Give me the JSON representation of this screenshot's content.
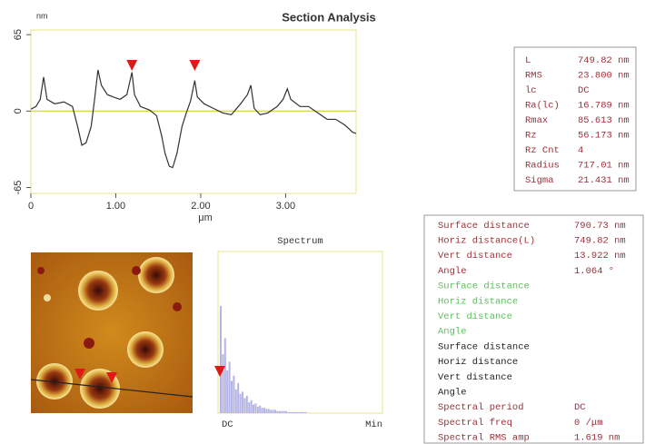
{
  "title": "Section Analysis",
  "chart_data": [
    {
      "type": "line",
      "y_label": "nm",
      "x_label": "μm",
      "x": [
        0,
        0.06,
        0.11,
        0.15,
        0.19,
        0.28,
        0.39,
        0.49,
        0.55,
        0.6,
        0.65,
        0.71,
        0.75,
        0.79,
        0.83,
        0.9,
        0.97,
        1.05,
        1.13,
        1.19,
        1.22,
        1.29,
        1.4,
        1.48,
        1.54,
        1.58,
        1.63,
        1.67,
        1.72,
        1.78,
        1.83,
        1.88,
        1.93,
        1.96,
        2.04,
        2.15,
        2.26,
        2.36,
        2.47,
        2.55,
        2.59,
        2.63,
        2.7,
        2.79,
        2.9,
        2.97,
        3.02,
        3.06,
        3.17,
        3.27,
        3.38,
        3.49,
        3.59,
        3.7,
        3.79,
        3.83
      ],
      "series": [
        {
          "color": "#333333",
          "values": [
            1.6,
            3.9,
            10,
            29,
            10,
            6.2,
            7.8,
            3.9,
            -13,
            -29,
            -27,
            -13,
            10,
            35,
            22,
            14,
            12,
            10,
            14,
            33,
            14,
            3.9,
            0.8,
            -3.9,
            -21,
            -36,
            -47,
            -48,
            -36,
            -13,
            -1.6,
            8.5,
            26,
            12,
            6.2,
            2.3,
            -1.6,
            -3.1,
            6.2,
            14,
            22,
            2.3,
            -3.1,
            -1.6,
            3.9,
            10,
            19,
            10,
            3.9,
            3.9,
            -1.6,
            -7,
            -7,
            -12,
            -18,
            -19
          ]
        }
      ],
      "xlim": [
        0,
        3.83
      ],
      "ylim": [
        -70,
        69
      ],
      "xticks": [
        0,
        {
          "value": 1,
          "label": "1.00"
        },
        {
          "value": 2,
          "label": "2.00"
        },
        {
          "value": 3,
          "label": "3.00"
        }
      ],
      "yticks": [
        65,
        0,
        -65
      ],
      "cursors_x": [
        1.19,
        1.93
      ],
      "cursor_color": "#e01818"
    },
    {
      "type": "bar",
      "title": "Spectrum",
      "x_labels": [
        "DC",
        "Min"
      ],
      "color": "#b4b4e6",
      "values": [
        100,
        55,
        70,
        40,
        48,
        30,
        35,
        22,
        28,
        18,
        20,
        14,
        16,
        10,
        12,
        8,
        9,
        6,
        7,
        5,
        5,
        4,
        4,
        3,
        3,
        3,
        2,
        2,
        2,
        2,
        2,
        1,
        1,
        1,
        1,
        1,
        1,
        1,
        1,
        1
      ],
      "ylim": [
        0,
        100
      ]
    }
  ],
  "stats": {
    "rows": [
      [
        "L",
        "749.82 nm"
      ],
      [
        "RMS",
        "23.800 nm"
      ],
      [
        "lc",
        "DC"
      ],
      [
        "Ra(lc)",
        "16.789 nm"
      ],
      [
        "Rmax",
        "85.613 nm"
      ],
      [
        "Rz",
        "56.173 nm"
      ],
      [
        "Rz Cnt",
        "4"
      ],
      [
        "Radius",
        "717.01 nm"
      ],
      [
        "Sigma",
        "21.431 nm"
      ]
    ]
  },
  "measurements": {
    "rows": [
      [
        "Surface distance",
        "790.73 nm"
      ],
      [
        "Horiz distance(L)",
        "749.82 nm"
      ],
      [
        "Vert distance",
        "13.922 nm"
      ],
      [
        "Angle",
        "1.064 °"
      ],
      [
        "Surface distance",
        ""
      ],
      [
        "Horiz distance",
        ""
      ],
      [
        "Vert distance",
        ""
      ],
      [
        "Angle",
        ""
      ],
      [
        "Surface distance",
        ""
      ],
      [
        "Horiz distance",
        ""
      ],
      [
        "Vert distance",
        ""
      ],
      [
        "Angle",
        ""
      ],
      [
        "Spectral period",
        "DC"
      ],
      [
        "Spectral freq",
        "0 /μm"
      ],
      [
        "Spectral RMS amp",
        "1.619 nm"
      ]
    ]
  }
}
